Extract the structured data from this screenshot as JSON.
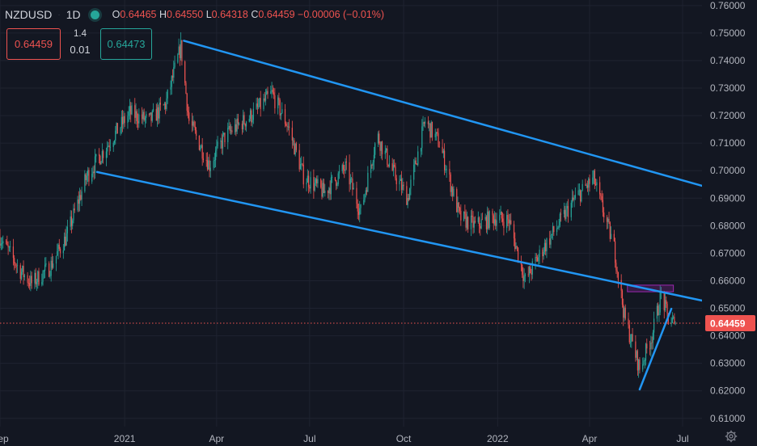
{
  "header": {
    "symbol": "NZDUSD",
    "separator": "·",
    "timeframe": "1D",
    "ohlc": {
      "o_label": "O",
      "o": "0.64465",
      "h_label": "H",
      "h": "0.64550",
      "l_label": "L",
      "l": "0.64318",
      "c_label": "C",
      "c": "0.64459",
      "change": "−0.00006",
      "change_pct": "(−0.01%)"
    }
  },
  "trade": {
    "sell_price": "0.64459",
    "lot": "1.4",
    "spread": "0.01",
    "buy_price": "0.64473"
  },
  "colors": {
    "background": "#131722",
    "up": "#26a69a",
    "down": "#ef5350",
    "trendline": "#2196f3",
    "zone": "#9c27b0",
    "price_tag": "#ef5350"
  },
  "icons": [
    "live-status-icon",
    "gear-icon"
  ],
  "chart_data": {
    "type": "candlestick",
    "y_ticks": [
      0.61,
      0.62,
      0.63,
      0.64,
      0.65,
      0.66,
      0.67,
      0.68,
      0.69,
      0.7,
      0.71,
      0.72,
      0.73,
      0.74,
      0.75,
      0.76
    ],
    "y_tick_labels": [
      "0.61000",
      "0.62000",
      "0.63000",
      "0.64000",
      "0.65000",
      "0.66000",
      "0.67000",
      "0.68000",
      "0.69000",
      "0.70000",
      "0.71000",
      "0.72000",
      "0.73000",
      "0.74000",
      "0.75000",
      "0.76000"
    ],
    "ylim": [
      0.607,
      0.762
    ],
    "xlim": [
      "2020-09-01",
      "2022-07-20"
    ],
    "x_ticks": [
      {
        "date": "2020-09-01",
        "label": "Sep"
      },
      {
        "date": "2021-01-01",
        "label": "2021"
      },
      {
        "date": "2021-04-01",
        "label": "Apr"
      },
      {
        "date": "2021-07-01",
        "label": "Jul"
      },
      {
        "date": "2021-10-01",
        "label": "Oct"
      },
      {
        "date": "2022-01-01",
        "label": "2022"
      },
      {
        "date": "2022-04-01",
        "label": "Apr"
      },
      {
        "date": "2022-07-01",
        "label": "Jul"
      }
    ],
    "last_price": 0.64459,
    "last_price_label": "0.64459",
    "path": [
      [
        "2020-09-01",
        0.676
      ],
      [
        "2020-09-20",
        0.664
      ],
      [
        "2020-10-02",
        0.659
      ],
      [
        "2020-10-20",
        0.665
      ],
      [
        "2020-11-05",
        0.676
      ],
      [
        "2020-11-25",
        0.698
      ],
      [
        "2020-12-20",
        0.712
      ],
      [
        "2021-01-06",
        0.721
      ],
      [
        "2021-01-25",
        0.718
      ],
      [
        "2021-02-10",
        0.724
      ],
      [
        "2021-02-25",
        0.745
      ],
      [
        "2021-03-05",
        0.718
      ],
      [
        "2021-03-25",
        0.702
      ],
      [
        "2021-04-10",
        0.713
      ],
      [
        "2021-05-05",
        0.72
      ],
      [
        "2021-05-25",
        0.728
      ],
      [
        "2021-06-10",
        0.716
      ],
      [
        "2021-06-25",
        0.698
      ],
      [
        "2021-07-15",
        0.692
      ],
      [
        "2021-08-05",
        0.701
      ],
      [
        "2021-08-20",
        0.685
      ],
      [
        "2021-09-05",
        0.713
      ],
      [
        "2021-09-20",
        0.7
      ],
      [
        "2021-10-05",
        0.69
      ],
      [
        "2021-10-22",
        0.718
      ],
      [
        "2021-11-05",
        0.71
      ],
      [
        "2021-11-25",
        0.683
      ],
      [
        "2021-12-10",
        0.68
      ],
      [
        "2021-12-28",
        0.683
      ],
      [
        "2022-01-12",
        0.682
      ],
      [
        "2022-01-28",
        0.66
      ],
      [
        "2022-02-15",
        0.672
      ],
      [
        "2022-03-01",
        0.68
      ],
      [
        "2022-03-18",
        0.69
      ],
      [
        "2022-04-05",
        0.697
      ],
      [
        "2022-04-25",
        0.672
      ],
      [
        "2022-05-05",
        0.647
      ],
      [
        "2022-05-20",
        0.628
      ],
      [
        "2022-06-01",
        0.64
      ],
      [
        "2022-06-10",
        0.655
      ],
      [
        "2022-06-17",
        0.646
      ],
      [
        "2022-06-24",
        0.6446
      ]
    ],
    "trendlines": [
      {
        "from": [
          "2021-02-28",
          0.7472
        ],
        "to": [
          "2022-07-20",
          0.6945
        ]
      },
      {
        "from": [
          "2020-12-05",
          0.6995
        ],
        "to": [
          "2022-07-20",
          0.6528
        ]
      },
      {
        "from": [
          "2022-05-20",
          0.6205
        ],
        "to": [
          "2022-06-20",
          0.6498
        ]
      }
    ],
    "zone": {
      "from": "2022-05-08",
      "to": "2022-06-22",
      "low": 0.656,
      "high": 0.6584
    }
  }
}
